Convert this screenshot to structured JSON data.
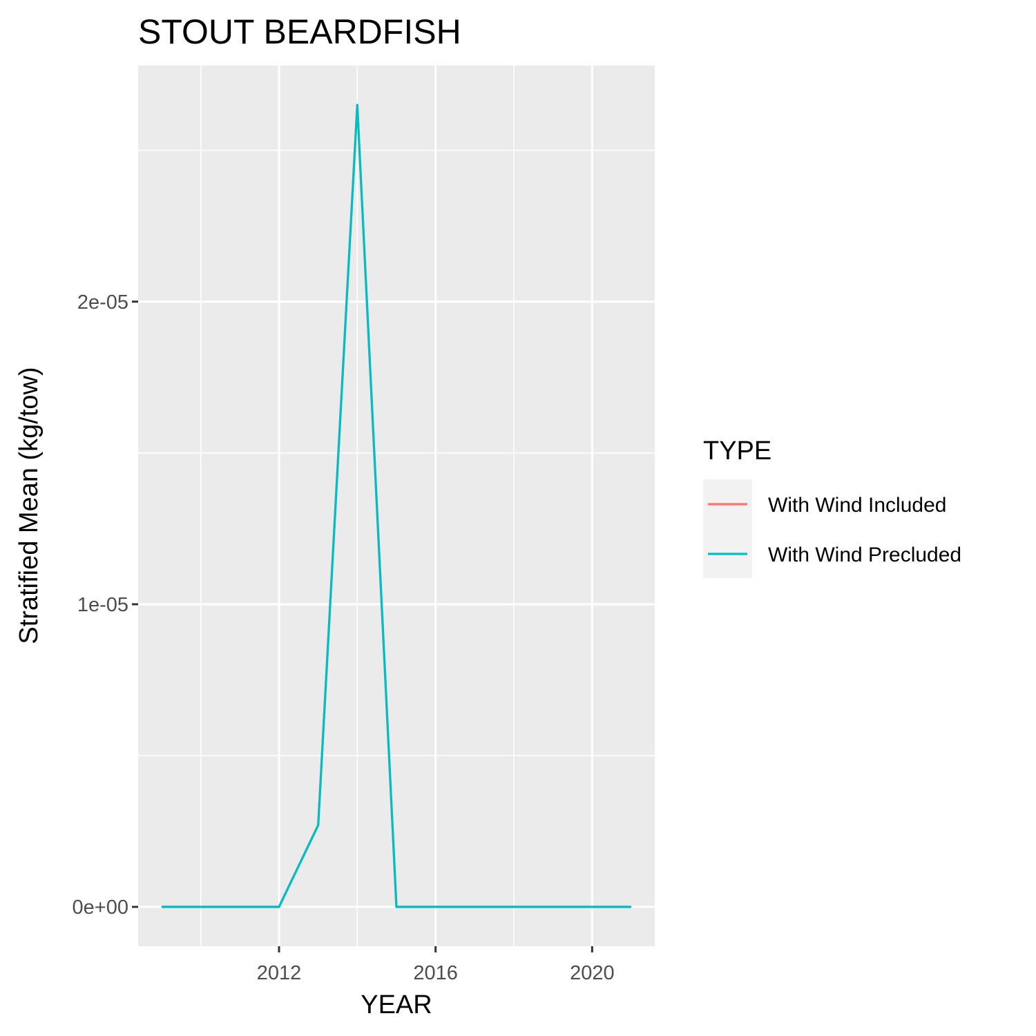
{
  "chart_data": {
    "type": "line",
    "title": "STOUT BEARDFISH",
    "xlabel": "YEAR",
    "ylabel": "Stratified Mean (kg/tow)",
    "x": [
      2009,
      2010,
      2011,
      2012,
      2013,
      2014,
      2015,
      2016,
      2017,
      2018,
      2019,
      2020,
      2021
    ],
    "series": [
      {
        "name": "With Wind Included",
        "color": "#F8766D",
        "values": [
          0,
          0,
          0,
          0,
          2.7e-06,
          2.65e-05,
          0,
          0,
          0,
          0,
          0,
          0,
          0
        ]
      },
      {
        "name": "With Wind Precluded",
        "color": "#00BFC4",
        "values": [
          0,
          0,
          0,
          0,
          2.7e-06,
          2.65e-05,
          0,
          0,
          0,
          0,
          0,
          0,
          0
        ]
      }
    ],
    "xlim": [
      2008.4,
      2021.6
    ],
    "ylim": [
      -1.3e-06,
      2.78e-05
    ],
    "x_ticks": [
      2012,
      2016,
      2020
    ],
    "x_tick_labels": [
      "2012",
      "2016",
      "2020"
    ],
    "x_minor_ticks": [
      2010,
      2014,
      2018
    ],
    "y_ticks": [
      0,
      1e-05,
      2e-05
    ],
    "y_tick_labels": [
      "0e+00",
      "1e-05",
      "2e-05"
    ],
    "y_minor_ticks": [
      5e-06,
      1.5e-05,
      2.5e-05
    ],
    "legend": {
      "title": "TYPE",
      "position": "right"
    },
    "grid": true,
    "panel_background": "#EBEBEB"
  }
}
